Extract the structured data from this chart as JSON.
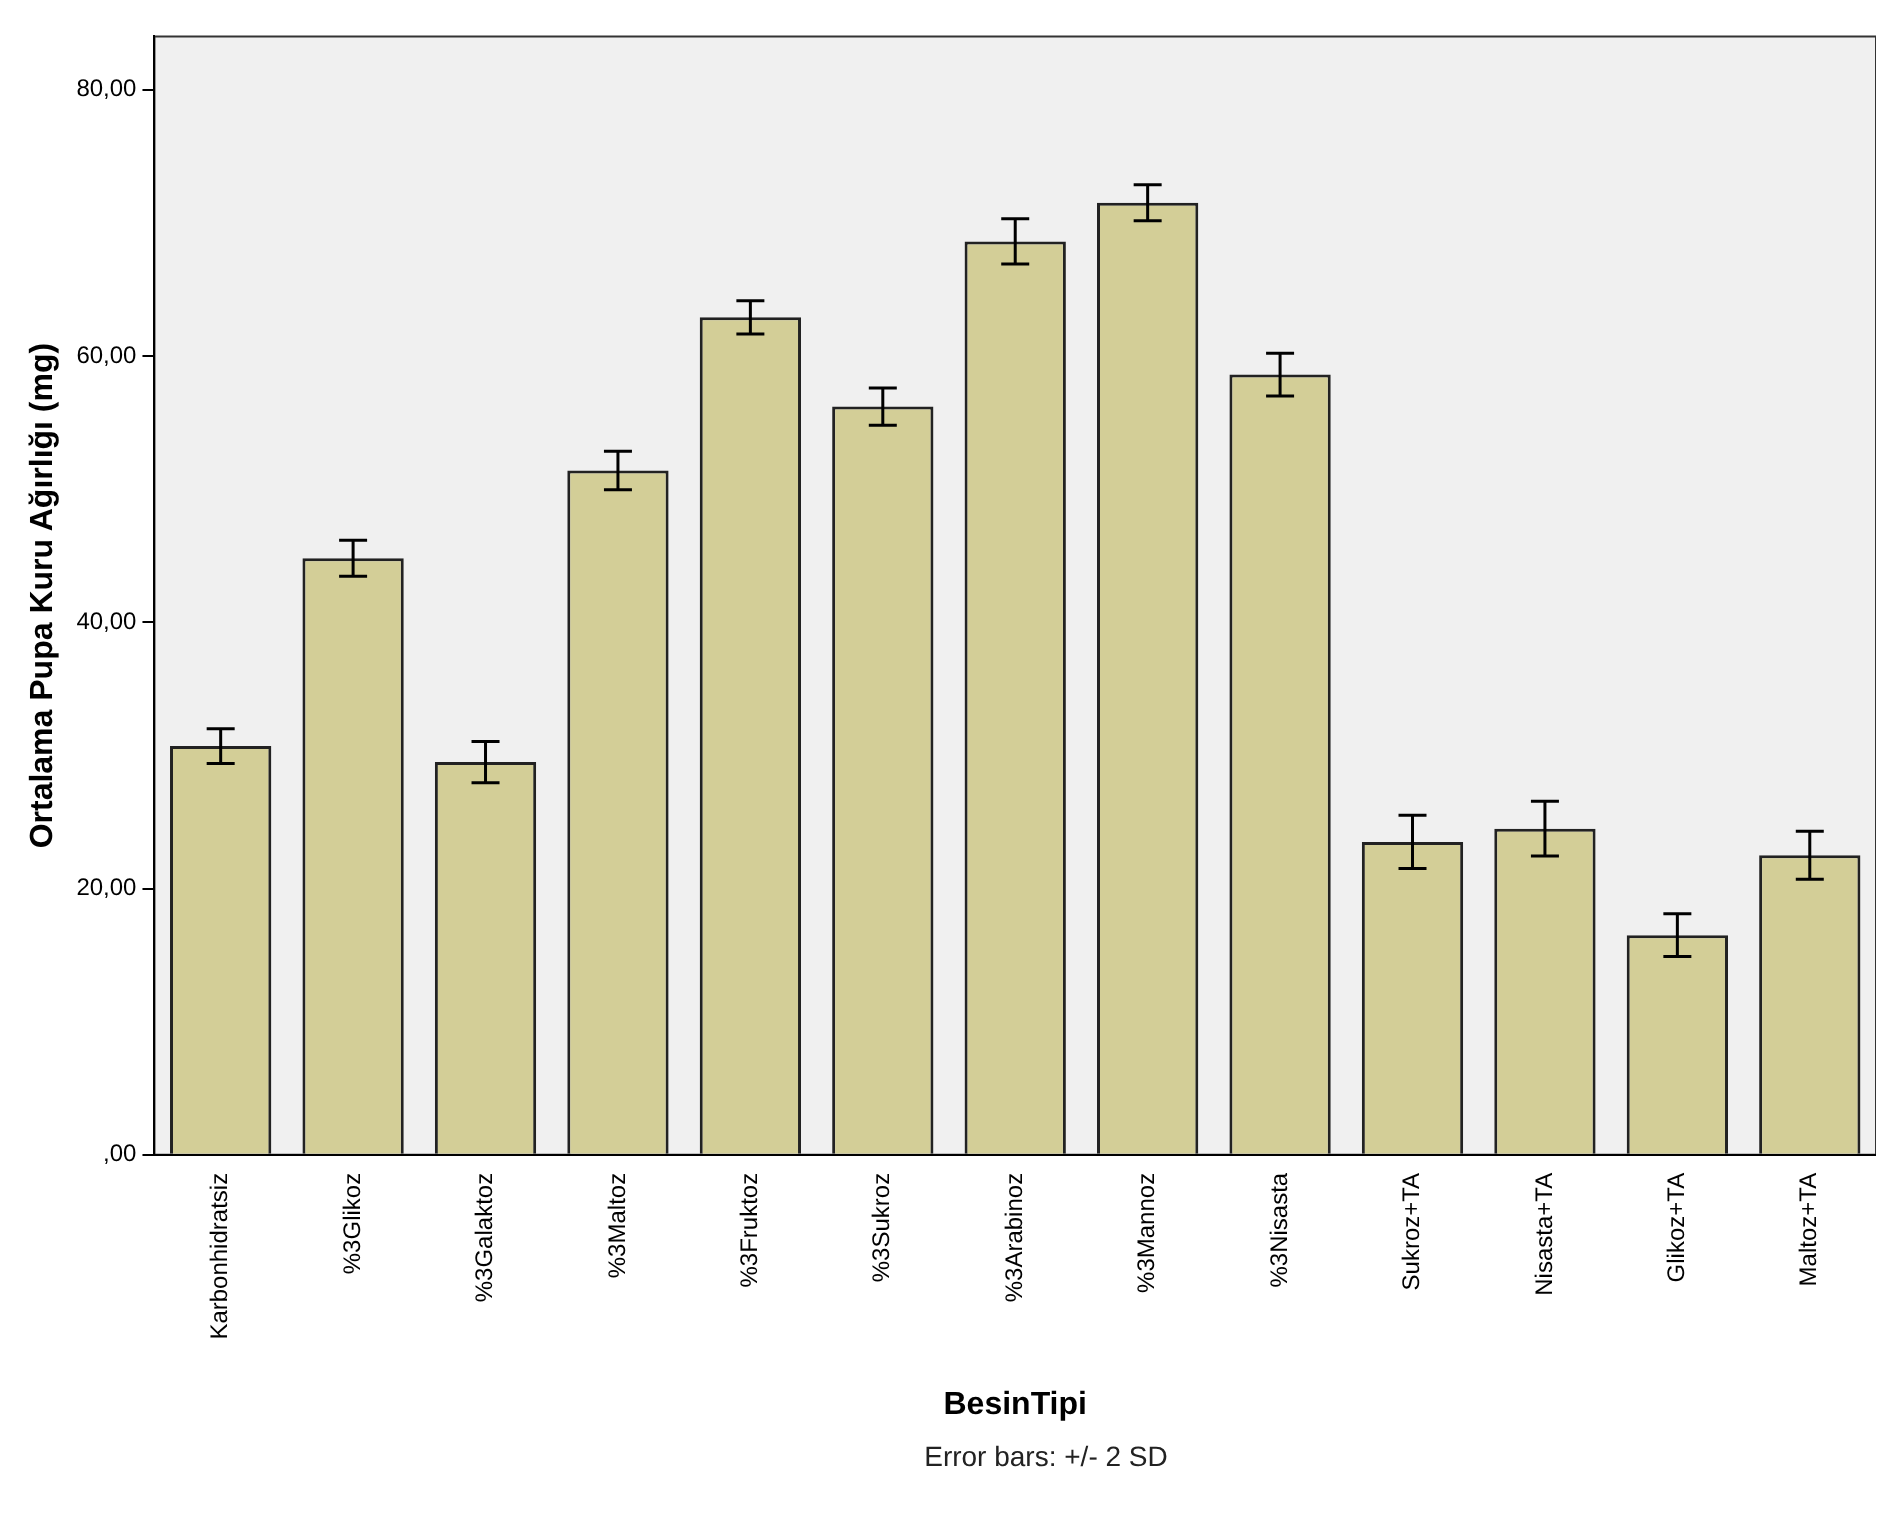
{
  "chart_data": {
    "type": "bar",
    "xlabel": "BesinTipi",
    "ylabel": "Ortalama Pupa Kuru Ağırlığı (mg)",
    "categories": [
      "Karbonhidratsiz",
      "%3Glikoz",
      "%3Galaktoz",
      "%3Maltoz",
      "%3Fruktoz",
      "%3Sukroz",
      "%3Arabinoz",
      "%3Mannoz",
      "%3Nisasta",
      "Sukroz+TA",
      "Nisasta+TA",
      "Glikoz+TA",
      "Maltoz+TA"
    ],
    "values": [
      30.7,
      44.8,
      29.5,
      51.4,
      62.9,
      56.2,
      68.6,
      71.5,
      58.6,
      23.5,
      24.5,
      16.5,
      22.5
    ],
    "errors": [
      1.3,
      1.35,
      1.55,
      1.45,
      1.25,
      1.4,
      1.7,
      1.35,
      1.6,
      2.0,
      2.05,
      1.6,
      1.8
    ],
    "color": "#d3ce97",
    "ylim": [
      0,
      84
    ],
    "yticks": [
      {
        "value": 0,
        "label": ",00"
      },
      {
        "value": 20,
        "label": "20,00"
      },
      {
        "value": 40,
        "label": "40,00"
      },
      {
        "value": 60,
        "label": "60,00"
      },
      {
        "value": 80,
        "label": "80,00"
      }
    ],
    "grid": false,
    "legend": false,
    "annotations": [
      "Error bars: +/- 2 SD"
    ]
  }
}
